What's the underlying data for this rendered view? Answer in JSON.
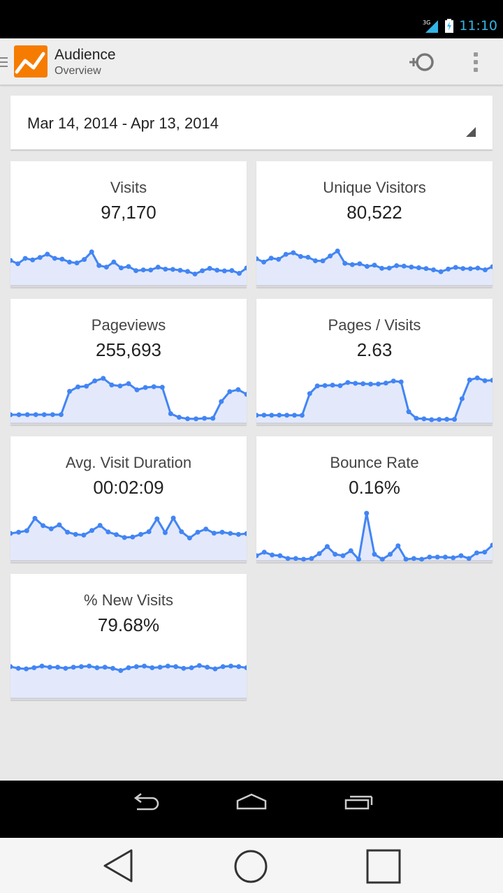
{
  "status_bar": {
    "time": "11:10",
    "network_label": "3G",
    "icons": [
      "signal-icon",
      "battery-charging-icon"
    ]
  },
  "action_bar": {
    "title": "Audience",
    "subtitle": "Overview",
    "icons": [
      "drawer-icon",
      "analytics-logo-icon",
      "add-segment-icon",
      "overflow-menu-icon"
    ]
  },
  "date_range": {
    "label": "Mar 14, 2014 - Apr 13, 2014"
  },
  "colors": {
    "line": "#4285f4",
    "fill": "#e3e9fb",
    "logo": "#f57c00"
  },
  "metrics": [
    {
      "label": "Visits",
      "value": "97,170",
      "series": [
        3188,
        3041,
        3279,
        3211,
        3321,
        3467,
        3279,
        3245,
        3112,
        3075,
        3231,
        3569,
        2961,
        2888,
        3116,
        2853,
        2916,
        2731,
        2763,
        2759,
        2885,
        2798,
        2787,
        2745,
        2695,
        2580,
        2727,
        2831,
        2750,
        2718,
        2735,
        2610,
        2849
      ]
    },
    {
      "label": "Unique Visitors",
      "value": "80,522",
      "series": [
        2612,
        2481,
        2634,
        2590,
        2784,
        2847,
        2700,
        2670,
        2531,
        2527,
        2719,
        2917,
        2430,
        2380,
        2415,
        2310,
        2359,
        2234,
        2244,
        2340,
        2320,
        2284,
        2257,
        2224,
        2175,
        2101,
        2205,
        2271,
        2227,
        2220,
        2244,
        2173,
        2299
      ]
    },
    {
      "label": "Pageviews",
      "value": "255,693",
      "series": [
        3500,
        3512,
        3528,
        3527,
        3537,
        3544,
        3545,
        11870,
        13470,
        13710,
        15610,
        16530,
        14160,
        13810,
        14620,
        12400,
        13250,
        13530,
        13330,
        3870,
        2580,
        2050,
        2040,
        2220,
        2210,
        8230,
        11770,
        12490,
        10820
      ]
    },
    {
      "label": "Pages / Visits",
      "value": "2.63",
      "series": [
        1.08,
        1.09,
        1.08,
        1.09,
        1.08,
        1.08,
        1.07,
        3.6,
        4.49,
        4.53,
        4.58,
        4.52,
        4.89,
        4.79,
        4.74,
        4.7,
        4.71,
        4.82,
        5.06,
        4.96,
        1.48,
        0.72,
        0.66,
        0.56,
        0.59,
        0.61,
        0.6,
        3.0,
        5.19,
        5.42,
        5.1,
        5.15
      ]
    },
    {
      "label": "Avg. Visit Duration",
      "value": "00:02:09",
      "series": [
        118,
        123,
        129,
        180,
        150,
        137,
        153,
        123,
        114,
        111,
        130,
        151,
        124,
        113,
        101,
        103,
        114,
        125,
        178,
        121,
        181,
        125,
        99,
        123,
        136,
        119,
        123,
        118,
        114,
        117
      ]
    },
    {
      "label": "Bounce Rate",
      "value": "0.16%",
      "series": [
        0.05,
        0.1,
        0.06,
        0.05,
        0.01,
        0.01,
        0.0,
        0.01,
        0.08,
        0.18,
        0.07,
        0.05,
        0.12,
        0.0,
        0.65,
        0.07,
        0.0,
        0.07,
        0.19,
        0.0,
        0.01,
        0.0,
        0.03,
        0.03,
        0.03,
        0.02,
        0.05,
        0.01,
        0.09,
        0.1,
        0.2
      ]
    },
    {
      "label": "% New Visits",
      "value": "79.68%",
      "series": [
        79.9,
        79.6,
        79.5,
        79.7,
        80.0,
        79.8,
        79.8,
        79.6,
        79.8,
        79.9,
        80.0,
        79.7,
        79.8,
        79.6,
        79.2,
        79.7,
        79.9,
        80.0,
        79.7,
        79.8,
        80.0,
        79.9,
        79.6,
        79.7,
        80.1,
        79.8,
        79.5,
        79.9,
        80.0,
        79.9,
        79.7
      ]
    }
  ]
}
